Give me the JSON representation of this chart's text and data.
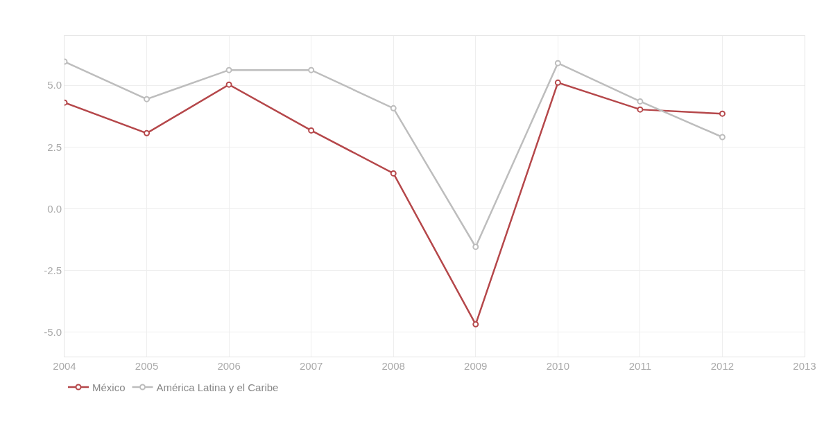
{
  "chart_data": {
    "type": "line",
    "x": [
      2004,
      2005,
      2006,
      2007,
      2008,
      2009,
      2010,
      2011,
      2012
    ],
    "series": [
      {
        "name": "México",
        "color": "#b5474a",
        "values": [
          4.3,
          3.06,
          5.03,
          3.17,
          1.43,
          -4.69,
          5.11,
          4.02,
          3.85
        ]
      },
      {
        "name": "América Latina y el Caribe",
        "color": "#bdbdbd",
        "values": [
          5.96,
          4.44,
          5.62,
          5.62,
          4.07,
          -1.55,
          5.9,
          4.35,
          2.9
        ]
      }
    ],
    "xlim": [
      2004,
      2013
    ],
    "xticks": [
      2004,
      2005,
      2006,
      2007,
      2008,
      2009,
      2010,
      2011,
      2012,
      2013
    ],
    "ylim": [
      -6,
      7
    ],
    "yticks": [
      {
        "value": -5,
        "label": "-5.0"
      },
      {
        "value": -2.5,
        "label": "-2.5"
      },
      {
        "value": 0,
        "label": "0.0"
      },
      {
        "value": 2.5,
        "label": "2.5"
      },
      {
        "value": 5,
        "label": "5.0"
      }
    ],
    "grid": true,
    "legend": "bottom left",
    "marker": "circle",
    "line_style": "solid"
  }
}
